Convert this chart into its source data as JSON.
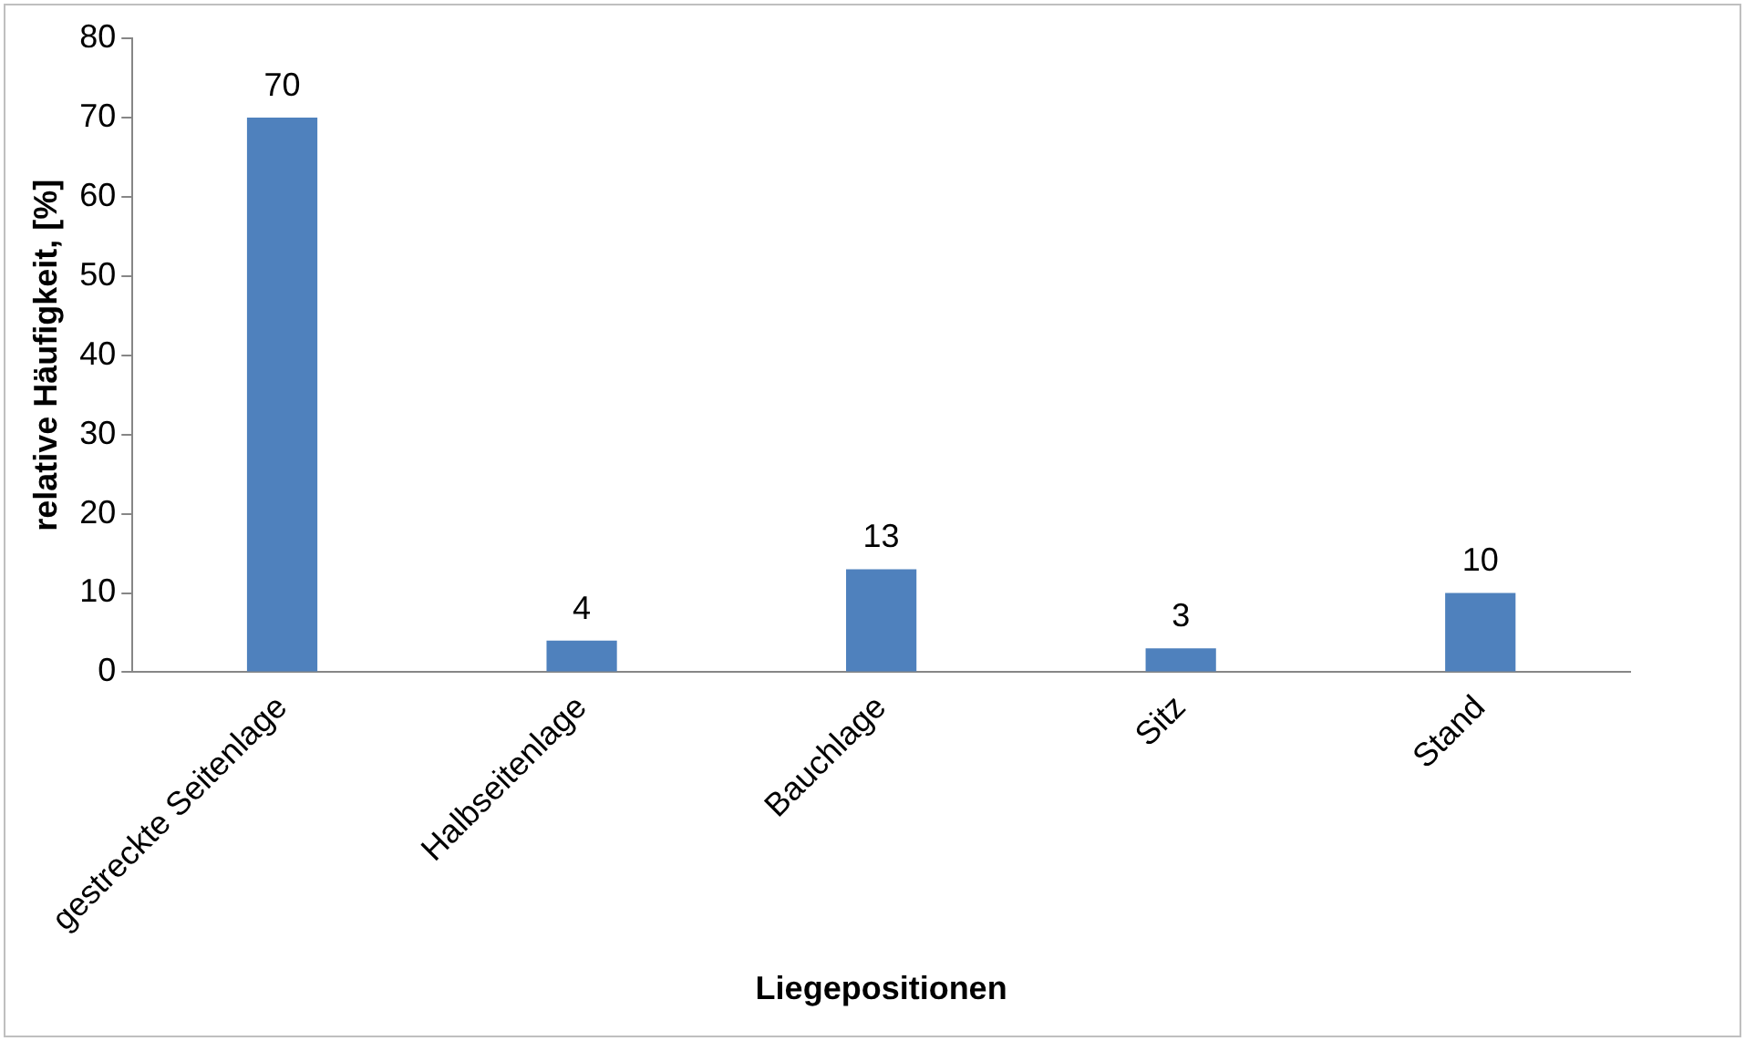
{
  "chart_data": {
    "type": "bar",
    "xlabel": "Liegepositionen",
    "ylabel": "relative Häufigkeit, [%]",
    "categories": [
      "gestreckte Seitenlage",
      "Halbseitenlage",
      "Bauchlage",
      "Sitz",
      "Stand"
    ],
    "values": [
      70,
      4,
      13,
      3,
      10
    ],
    "color": "#4f81bd",
    "ylim": [
      0,
      80
    ],
    "yticks": [
      0,
      10,
      20,
      30,
      40,
      50,
      60,
      70,
      80
    ],
    "grid": false,
    "legend": false,
    "data_labels": true
  }
}
